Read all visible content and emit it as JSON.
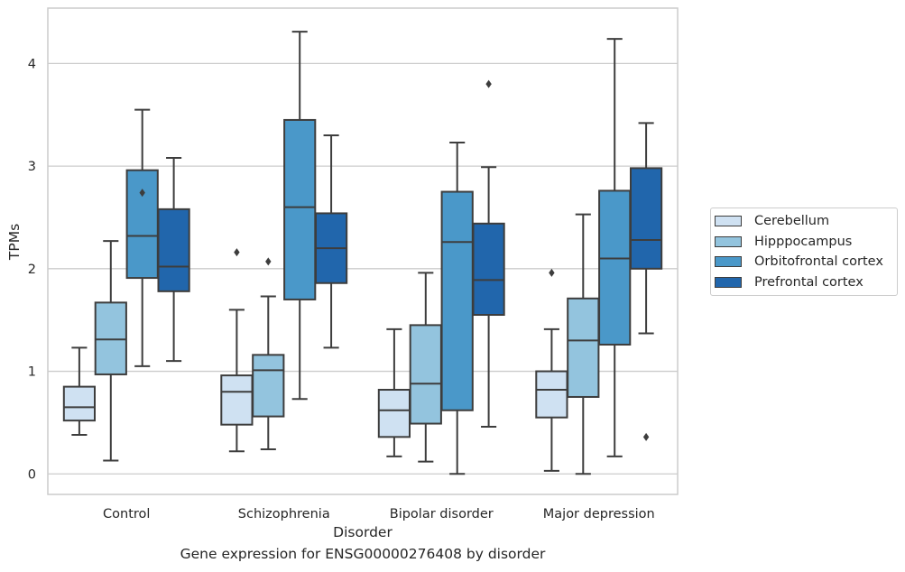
{
  "chart_data": {
    "type": "box",
    "caption": "Gene expression for ENSG00000276408 by disorder",
    "xlabel": "Disorder",
    "ylabel": "TPMs",
    "ylim": [
      -0.2,
      4.54
    ],
    "yticks": [
      0,
      1,
      2,
      3,
      4
    ],
    "grid": true,
    "legend_position": "right",
    "categories": [
      "Control",
      "Schizophrenia",
      "Bipolar disorder",
      "Major depression"
    ],
    "series": [
      {
        "name": "Cerebellum",
        "color": "#cfe1f2",
        "boxes": [
          {
            "whislo": 0.38,
            "q1": 0.52,
            "med": 0.65,
            "q3": 0.85,
            "whishi": 1.23,
            "fliers": []
          },
          {
            "whislo": 0.22,
            "q1": 0.48,
            "med": 0.8,
            "q3": 0.96,
            "whishi": 1.6,
            "fliers": [
              2.16
            ]
          },
          {
            "whislo": 0.17,
            "q1": 0.36,
            "med": 0.62,
            "q3": 0.82,
            "whishi": 1.41,
            "fliers": []
          },
          {
            "whislo": 0.03,
            "q1": 0.55,
            "med": 0.82,
            "q3": 1.0,
            "whishi": 1.41,
            "fliers": [
              1.96
            ]
          }
        ]
      },
      {
        "name": "Hipppocampus",
        "color": "#93c4de",
        "boxes": [
          {
            "whislo": 0.13,
            "q1": 0.97,
            "med": 1.31,
            "q3": 1.67,
            "whishi": 2.27,
            "fliers": []
          },
          {
            "whislo": 0.24,
            "q1": 0.56,
            "med": 1.01,
            "q3": 1.16,
            "whishi": 1.73,
            "fliers": [
              2.07
            ]
          },
          {
            "whislo": 0.12,
            "q1": 0.49,
            "med": 0.88,
            "q3": 1.45,
            "whishi": 1.96,
            "fliers": []
          },
          {
            "whislo": 0.0,
            "q1": 0.75,
            "med": 1.3,
            "q3": 1.71,
            "whishi": 2.53,
            "fliers": []
          }
        ]
      },
      {
        "name": "Orbitofrontal cortex",
        "color": "#4a98c9",
        "boxes": [
          {
            "whislo": 1.05,
            "q1": 1.91,
            "med": 2.32,
            "q3": 2.96,
            "whishi": 3.55,
            "fliers": [
              2.74
            ]
          },
          {
            "whislo": 0.73,
            "q1": 1.7,
            "med": 2.6,
            "q3": 3.45,
            "whishi": 4.31,
            "fliers": []
          },
          {
            "whislo": 0.0,
            "q1": 0.62,
            "med": 2.26,
            "q3": 2.75,
            "whishi": 3.23,
            "fliers": []
          },
          {
            "whislo": 0.17,
            "q1": 1.26,
            "med": 2.1,
            "q3": 2.76,
            "whishi": 4.24,
            "fliers": []
          }
        ]
      },
      {
        "name": "Prefrontal cortex",
        "color": "#2166ac",
        "boxes": [
          {
            "whislo": 1.1,
            "q1": 1.78,
            "med": 2.02,
            "q3": 2.58,
            "whishi": 3.08,
            "fliers": []
          },
          {
            "whislo": 1.23,
            "q1": 1.86,
            "med": 2.2,
            "q3": 2.54,
            "whishi": 3.3,
            "fliers": []
          },
          {
            "whislo": 0.46,
            "q1": 1.55,
            "med": 1.89,
            "q3": 2.44,
            "whishi": 2.99,
            "fliers": [
              3.8
            ]
          },
          {
            "whislo": 1.37,
            "q1": 2.0,
            "med": 2.28,
            "q3": 2.98,
            "whishi": 3.42,
            "fliers": [
              0.36
            ]
          }
        ]
      }
    ]
  }
}
